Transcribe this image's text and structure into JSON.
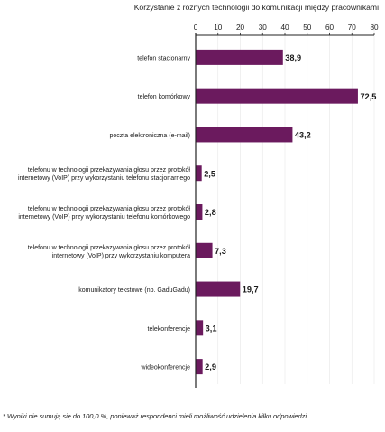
{
  "chart_data": {
    "type": "bar",
    "orientation": "horizontal",
    "title": "Korzystanie z różnych technologii do komunikacji między pracownikami",
    "categories": [
      [
        "telefon stacjonarny"
      ],
      [
        "telefon komórkowy"
      ],
      [
        "poczta elektroniczna (e-mail)"
      ],
      [
        "telefonu w technologii przekazywania głosu przez protokół",
        "internetowy (VoIP) przy wykorzystaniu telefonu stacjonarnego"
      ],
      [
        "telefonu w technologii przekazywania głosu przez protokół",
        "internetowy (VoIP) przy wykorzystaniu telefonu komórkowego"
      ],
      [
        "telefonu w technologii przekazywania głosu przez protokół",
        "internetowy (VoIP) przy wykorzystaniu komputera"
      ],
      [
        "komunikatory tekstowe (np. GaduGadu)"
      ],
      [
        "telekonferencje"
      ],
      [
        "wideokonferencje"
      ]
    ],
    "values": [
      38.9,
      72.5,
      43.2,
      2.5,
      2.8,
      7.3,
      19.7,
      3.1,
      2.9
    ],
    "value_labels": [
      "38,9",
      "72,5",
      "43,2",
      "2,5",
      "2,8",
      "7,3",
      "19,7",
      "3,1",
      "2,9"
    ],
    "xlim": [
      0,
      80
    ],
    "xticks": [
      "0",
      "10",
      "20",
      "30",
      "40",
      "50",
      "60",
      "70",
      "80"
    ],
    "colors": {
      "bar": "#6b1a5e",
      "axis": "#222222",
      "grid": "#e6e6e6"
    },
    "grid": false
  },
  "footnote": "* Wyniki nie sumują się do 100,0 %, ponieważ respondenci mieli możliwość udzielenia kilku odpowiedzi"
}
